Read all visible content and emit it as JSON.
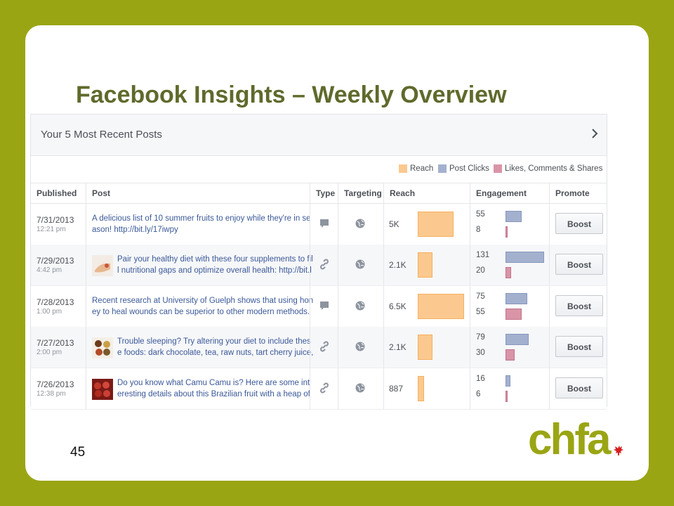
{
  "slide": {
    "title": "Facebook Insights – Weekly Overview",
    "page_number": "45",
    "logo_text": "chfa"
  },
  "panel": {
    "title": "Your 5 Most Recent Posts",
    "legend": [
      {
        "label": "Reach",
        "color": "#fbc98f"
      },
      {
        "label": "Post Clicks",
        "color": "#a3b1cf"
      },
      {
        "label": "Likes, Comments & Shares",
        "color": "#d994a8"
      }
    ],
    "columns": [
      "Published",
      "Post",
      "Type",
      "Targeting",
      "Reach",
      "Engagement",
      "Promote"
    ],
    "boost_label": "Boost",
    "rows": [
      {
        "date": "7/31/2013",
        "time": "12:21 pm",
        "text1": "A delicious list of 10 summer fruits to enjoy while they're in se",
        "text2": "ason! http://bit.ly/17iwpy",
        "type": "status-icon",
        "reach": "5K",
        "reach_value": 5000,
        "clicks": "55",
        "clicks_value": 55,
        "likes": "8",
        "likes_value": 8,
        "thumb": ""
      },
      {
        "date": "7/29/2013",
        "time": "4:42 pm",
        "text1": "Pair your healthy diet with these four supplements to fil",
        "text2": "l nutritional gaps and optimize overall health: http://bit.l",
        "type": "link-icon",
        "reach": "2.1K",
        "reach_value": 2100,
        "clicks": "131",
        "clicks_value": 131,
        "likes": "20",
        "likes_value": 20,
        "thumb": "supplements"
      },
      {
        "date": "7/28/2013",
        "time": "1:00 pm",
        "text1": "Recent research at University of Guelph shows that using hon",
        "text2": "ey to heal wounds can be superior to other modern methods.",
        "type": "status-icon",
        "reach": "6.5K",
        "reach_value": 6500,
        "clicks": "75",
        "clicks_value": 75,
        "likes": "55",
        "likes_value": 55,
        "thumb": ""
      },
      {
        "date": "7/27/2013",
        "time": "2:00 pm",
        "text1": "Trouble sleeping? Try altering your diet to include thes",
        "text2": "e foods: dark chocolate, tea, raw nuts, tart cherry juice,",
        "type": "link-icon",
        "reach": "2.1K",
        "reach_value": 2100,
        "clicks": "79",
        "clicks_value": 79,
        "likes": "30",
        "likes_value": 30,
        "thumb": "foods"
      },
      {
        "date": "7/26/2013",
        "time": "12:38 pm",
        "text1": "Do you know what Camu Camu is? Here are some int",
        "text2": "eresting details about this Brazilian fruit with a heap of",
        "type": "link-icon",
        "reach": "887",
        "reach_value": 887,
        "clicks": "16",
        "clicks_value": 16,
        "likes": "6",
        "likes_value": 6,
        "thumb": "fruit"
      }
    ]
  }
}
